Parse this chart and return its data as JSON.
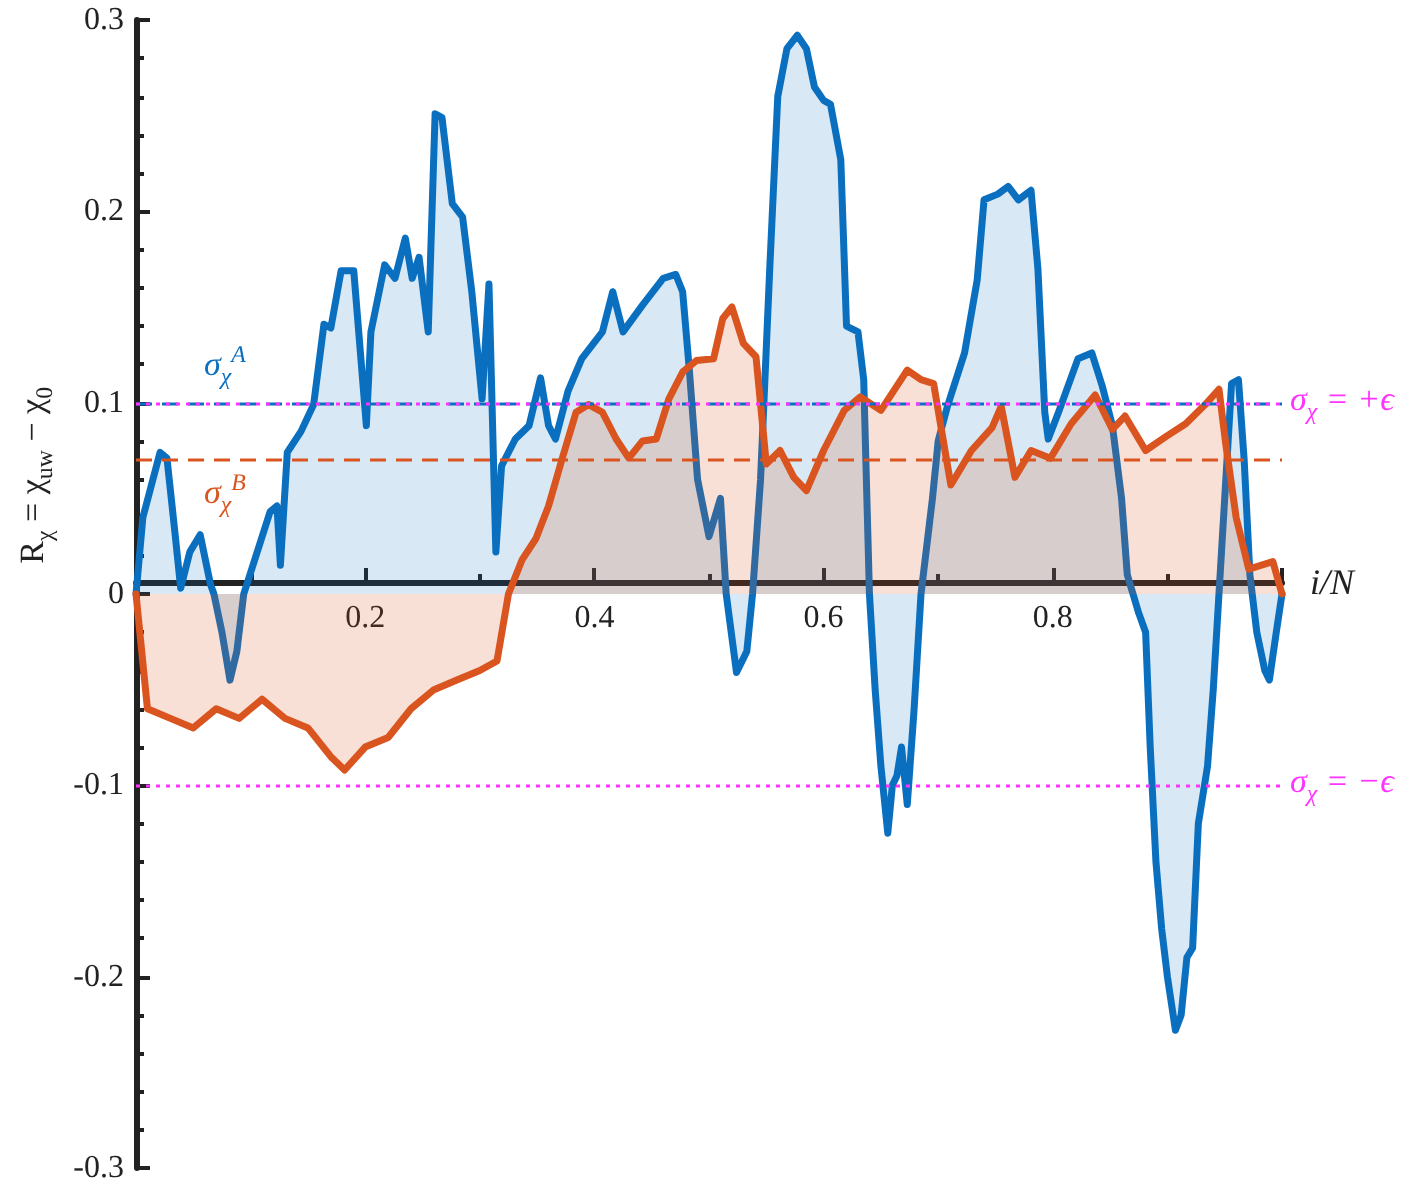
{
  "chart_data": {
    "type": "area",
    "xlabel": "i/N",
    "ylabel": "R$_{χ}$ = χ$_{uw}$ − χ$_{0}$",
    "xlim": [
      0,
      1
    ],
    "xticks": [
      {
        "value": 0,
        "label": null
      },
      0.2,
      0.4,
      0.6,
      0.8,
      {
        "value": 1,
        "label": null
      }
    ],
    "ylim": [
      -0.3,
      0.3
    ],
    "yticks": [
      -0.3,
      -0.2,
      -0.1,
      0,
      0.1,
      0.2,
      0.3
    ],
    "grid": false,
    "marker": "none",
    "line_style": "solid",
    "series": [
      {
        "color": "#0b6fbf",
        "x": [
          0,
          0.006,
          0.021,
          0.027,
          0.034,
          0.039,
          0.047,
          0.056,
          0.065,
          0.068,
          0.075,
          0.082,
          0.088,
          0.094,
          0.117,
          0.123,
          0.126,
          0.132,
          0.144,
          0.155,
          0.164,
          0.17,
          0.179,
          0.19,
          0.201,
          0.205,
          0.217,
          0.226,
          0.235,
          0.241,
          0.247,
          0.255,
          0.261,
          0.267,
          0.276,
          0.285,
          0.293,
          0.302,
          0.308,
          0.314,
          0.319,
          0.331,
          0.343,
          0.353,
          0.36,
          0.366,
          0.377,
          0.389,
          0.407,
          0.416,
          0.425,
          0.442,
          0.46,
          0.471,
          0.477,
          0.483,
          0.49,
          0.5,
          0.51,
          0.515,
          0.524,
          0.533,
          0.538,
          0.545,
          0.553,
          0.56,
          0.568,
          0.577,
          0.585,
          0.592,
          0.6,
          0.606,
          0.615,
          0.62,
          0.63,
          0.635,
          0.64,
          0.645,
          0.65,
          0.656,
          0.66,
          0.664,
          0.668,
          0.673,
          0.679,
          0.685,
          0.695,
          0.7,
          0.708,
          0.723,
          0.734,
          0.74,
          0.752,
          0.761,
          0.77,
          0.781,
          0.787,
          0.793,
          0.796,
          0.805,
          0.822,
          0.834,
          0.843,
          0.852,
          0.86,
          0.865,
          0.87,
          0.875,
          0.881,
          0.885,
          0.89,
          0.895,
          0.9,
          0.907,
          0.912,
          0.917,
          0.922,
          0.927,
          0.935,
          0.94,
          0.945,
          0.95,
          0.956,
          0.962,
          0.967,
          0.972,
          0.978,
          0.985,
          0.989,
          0.995,
          1
        ],
        "values": [
          0,
          0.04,
          0.074,
          0.071,
          0.032,
          0.003,
          0.022,
          0.031,
          0.005,
          0,
          -0.02,
          -0.045,
          -0.03,
          0,
          0.043,
          0.046,
          0.015,
          0.074,
          0.085,
          0.099,
          0.141,
          0.139,
          0.169,
          0.169,
          0.088,
          0.137,
          0.172,
          0.165,
          0.186,
          0.165,
          0.176,
          0.137,
          0.251,
          0.249,
          0.204,
          0.197,
          0.158,
          0.102,
          0.162,
          0.022,
          0.067,
          0.081,
          0.088,
          0.113,
          0.088,
          0.081,
          0.106,
          0.123,
          0.137,
          0.158,
          0.137,
          0.151,
          0.165,
          0.167,
          0.158,
          0.116,
          0.06,
          0.03,
          0.05,
          0,
          -0.041,
          -0.03,
          0,
          0.06,
          0.17,
          0.26,
          0.285,
          0.292,
          0.285,
          0.265,
          0.258,
          0.256,
          0.227,
          0.14,
          0.137,
          0.112,
          0,
          -0.05,
          -0.09,
          -0.125,
          -0.1,
          -0.095,
          -0.08,
          -0.11,
          -0.06,
          0,
          0.05,
          0.08,
          0.098,
          0.126,
          0.164,
          0.206,
          0.209,
          0.213,
          0.206,
          0.211,
          0.17,
          0.095,
          0.081,
          0.095,
          0.123,
          0.126,
          0.109,
          0.088,
          0.05,
          0.01,
          0,
          -0.01,
          -0.02,
          -0.08,
          -0.14,
          -0.175,
          -0.2,
          -0.228,
          -0.22,
          -0.19,
          -0.185,
          -0.12,
          -0.09,
          -0.05,
          0,
          0.05,
          0.11,
          0.112,
          0.07,
          0.01,
          -0.02,
          -0.04,
          -0.045,
          -0.02,
          0
        ]
      },
      {
        "color": "#d9541e",
        "x": [
          0,
          0.01,
          0.03,
          0.05,
          0.07,
          0.09,
          0.11,
          0.13,
          0.15,
          0.17,
          0.182,
          0.2,
          0.22,
          0.24,
          0.26,
          0.28,
          0.3,
          0.315,
          0.325,
          0.337,
          0.349,
          0.36,
          0.372,
          0.384,
          0.395,
          0.407,
          0.419,
          0.43,
          0.442,
          0.454,
          0.465,
          0.477,
          0.489,
          0.504,
          0.512,
          0.52,
          0.53,
          0.541,
          0.55,
          0.562,
          0.574,
          0.585,
          0.6,
          0.618,
          0.632,
          0.65,
          0.673,
          0.685,
          0.696,
          0.711,
          0.729,
          0.747,
          0.755,
          0.767,
          0.781,
          0.798,
          0.816,
          0.837,
          0.852,
          0.863,
          0.881,
          0.898,
          0.916,
          0.933,
          0.945,
          0.951,
          0.96,
          0.971,
          0.992,
          1
        ],
        "values": [
          0,
          -0.06,
          -0.065,
          -0.07,
          -0.06,
          -0.065,
          -0.055,
          -0.065,
          -0.07,
          -0.085,
          -0.092,
          -0.08,
          -0.075,
          -0.06,
          -0.05,
          -0.045,
          -0.04,
          -0.035,
          0,
          0.018,
          0.029,
          0.046,
          0.071,
          0.095,
          0.099,
          0.095,
          0.081,
          0.071,
          0.08,
          0.081,
          0.102,
          0.116,
          0.122,
          0.123,
          0.144,
          0.15,
          0.131,
          0.124,
          0.068,
          0.075,
          0.061,
          0.054,
          0.075,
          0.096,
          0.103,
          0.096,
          0.117,
          0.112,
          0.11,
          0.057,
          0.075,
          0.087,
          0.098,
          0.061,
          0.075,
          0.071,
          0.089,
          0.104,
          0.086,
          0.093,
          0.075,
          0.082,
          0.089,
          0.099,
          0.107,
          0.078,
          0.04,
          0.013,
          0.017,
          0
        ]
      }
    ],
    "ref_lines": [
      {
        "axis": "y",
        "value": 0.1,
        "label": "σ$_{χ}$$^{A}$",
        "color": "#0b6fbf",
        "line_style": "dashed"
      },
      {
        "axis": "y",
        "value": 0.068,
        "label": "σ$_{χ}$$^{B}$",
        "color": "#d9541e",
        "line_style": "dashed"
      },
      {
        "axis": "y",
        "value": 0.1,
        "label": "σ$_{χ}$ = +ϵ",
        "color": "#ff33ff",
        "line_style": "dotted"
      },
      {
        "axis": "y",
        "value": -0.1,
        "label": "σ$_{χ}$ = −ϵ",
        "color": "#ff33ff",
        "line_style": "dotted"
      }
    ]
  }
}
